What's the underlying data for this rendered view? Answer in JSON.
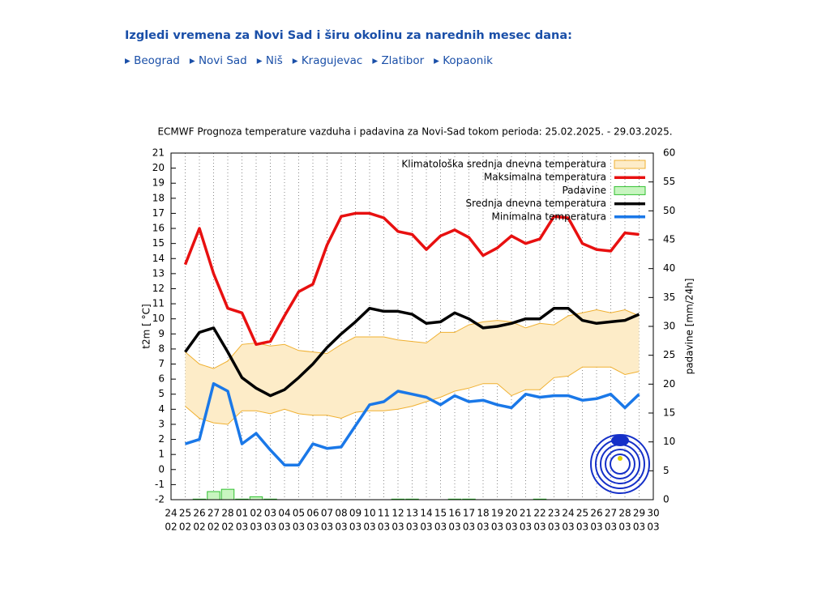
{
  "page": {
    "heading": "Izgledi vremena za Novi Sad i širu okolinu za narednih mesec dana:",
    "links": [
      "Beograd",
      "Novi Sad",
      "Niš",
      "Kragujevac",
      "Zlatibor",
      "Kopaonik"
    ]
  },
  "chart_data": {
    "type": "line",
    "title": "ECMWF Prognoza temperature vazduha i padavina za Novi-Sad tokom perioda: 25.02.2025. - 29.03.2025.",
    "ylabel": "t2m [ °C]",
    "y2label": "padavine [mm/24h]",
    "categories": [
      {
        "day": "24",
        "month": "02"
      },
      {
        "day": "25",
        "month": "02"
      },
      {
        "day": "26",
        "month": "02"
      },
      {
        "day": "27",
        "month": "02"
      },
      {
        "day": "28",
        "month": "02"
      },
      {
        "day": "01",
        "month": "03"
      },
      {
        "day": "02",
        "month": "03"
      },
      {
        "day": "03",
        "month": "03"
      },
      {
        "day": "04",
        "month": "03"
      },
      {
        "day": "05",
        "month": "03"
      },
      {
        "day": "06",
        "month": "03"
      },
      {
        "day": "07",
        "month": "03"
      },
      {
        "day": "08",
        "month": "03"
      },
      {
        "day": "09",
        "month": "03"
      },
      {
        "day": "10",
        "month": "03"
      },
      {
        "day": "11",
        "month": "03"
      },
      {
        "day": "12",
        "month": "03"
      },
      {
        "day": "13",
        "month": "03"
      },
      {
        "day": "14",
        "month": "03"
      },
      {
        "day": "15",
        "month": "03"
      },
      {
        "day": "16",
        "month": "03"
      },
      {
        "day": "17",
        "month": "03"
      },
      {
        "day": "18",
        "month": "03"
      },
      {
        "day": "19",
        "month": "03"
      },
      {
        "day": "20",
        "month": "03"
      },
      {
        "day": "21",
        "month": "03"
      },
      {
        "day": "22",
        "month": "03"
      },
      {
        "day": "23",
        "month": "03"
      },
      {
        "day": "24",
        "month": "03"
      },
      {
        "day": "25",
        "month": "03"
      },
      {
        "day": "26",
        "month": "03"
      },
      {
        "day": "27",
        "month": "03"
      },
      {
        "day": "28",
        "month": "03"
      },
      {
        "day": "29",
        "month": "03"
      },
      {
        "day": "30",
        "month": "03"
      }
    ],
    "ylim": [
      -2,
      21
    ],
    "yticks": [
      -2,
      -1,
      0,
      1,
      2,
      3,
      4,
      5,
      6,
      7,
      8,
      9,
      10,
      11,
      12,
      13,
      14,
      15,
      16,
      17,
      18,
      19,
      20,
      21
    ],
    "y2lim": [
      0,
      60
    ],
    "y2ticks": [
      0,
      5,
      10,
      15,
      20,
      25,
      30,
      35,
      40,
      45,
      50,
      55,
      60
    ],
    "grid": true,
    "series": [
      {
        "name": "Klimatološka srednja dnevna temperatura",
        "type": "band",
        "color": "#fdecc8",
        "edge": "#f0b030",
        "upper": [
          null,
          7.8,
          7.0,
          6.7,
          7.2,
          8.3,
          8.4,
          8.2,
          8.3,
          7.9,
          7.8,
          7.7,
          8.3,
          8.8,
          8.8,
          8.8,
          8.6,
          8.5,
          8.4,
          9.1,
          9.1,
          9.6,
          9.8,
          9.9,
          9.8,
          9.4,
          9.7,
          9.6,
          10.2,
          10.4,
          10.6,
          10.4,
          10.6,
          10.2,
          null
        ],
        "lower": [
          null,
          4.2,
          3.4,
          3.1,
          3.0,
          3.9,
          3.9,
          3.7,
          4.0,
          3.7,
          3.6,
          3.6,
          3.4,
          3.8,
          3.9,
          3.9,
          4.0,
          4.2,
          4.5,
          4.8,
          5.2,
          5.4,
          5.7,
          5.7,
          4.9,
          5.3,
          5.3,
          6.1,
          6.2,
          6.8,
          6.8,
          6.8,
          6.3,
          6.5,
          null
        ]
      },
      {
        "name": "Maksimalna temperatura",
        "type": "line",
        "color": "#e81010",
        "values": [
          null,
          13.6,
          16.0,
          13.0,
          10.7,
          10.4,
          8.3,
          8.5,
          10.2,
          11.8,
          12.3,
          14.9,
          16.8,
          17.0,
          17.0,
          16.7,
          15.8,
          15.6,
          14.6,
          15.5,
          15.9,
          15.4,
          14.2,
          14.7,
          15.5,
          15.0,
          15.3,
          16.8,
          16.7,
          15.0,
          14.6,
          14.5,
          15.7,
          15.6,
          null
        ]
      },
      {
        "name": "Padavine",
        "type": "bar",
        "axis": "y2",
        "color": "#c8f5c0",
        "edge": "#30c030",
        "values": [
          null,
          0,
          0.1,
          1.4,
          1.8,
          0.1,
          0.5,
          0.1,
          0,
          0,
          0,
          0,
          0,
          0,
          0,
          0,
          0.1,
          0.1,
          0,
          0,
          0.1,
          0.1,
          0,
          0,
          0,
          0,
          0.1,
          0,
          0,
          0,
          0,
          0,
          0,
          0,
          null
        ]
      },
      {
        "name": "Srednja dnevna temperatura",
        "type": "line",
        "color": "#000000",
        "values": [
          null,
          7.8,
          9.1,
          9.4,
          7.8,
          6.1,
          5.4,
          4.9,
          5.3,
          6.1,
          7.0,
          8.1,
          9.0,
          9.8,
          10.7,
          10.5,
          10.5,
          10.3,
          9.7,
          9.8,
          10.4,
          10.0,
          9.4,
          9.5,
          9.7,
          10.0,
          10.0,
          10.7,
          10.7,
          9.9,
          9.7,
          9.8,
          9.9,
          10.3,
          null
        ]
      },
      {
        "name": "Minimalna temperatura",
        "type": "line",
        "color": "#1a78e8",
        "values": [
          null,
          1.7,
          2.0,
          5.7,
          5.2,
          1.7,
          2.4,
          1.3,
          0.3,
          0.3,
          1.7,
          1.4,
          1.5,
          2.9,
          4.3,
          4.5,
          5.2,
          5.0,
          4.8,
          4.3,
          4.9,
          4.5,
          4.6,
          4.3,
          4.1,
          5.0,
          4.8,
          4.9,
          4.9,
          4.6,
          4.7,
          5.0,
          4.1,
          5.0,
          null
        ]
      }
    ]
  }
}
